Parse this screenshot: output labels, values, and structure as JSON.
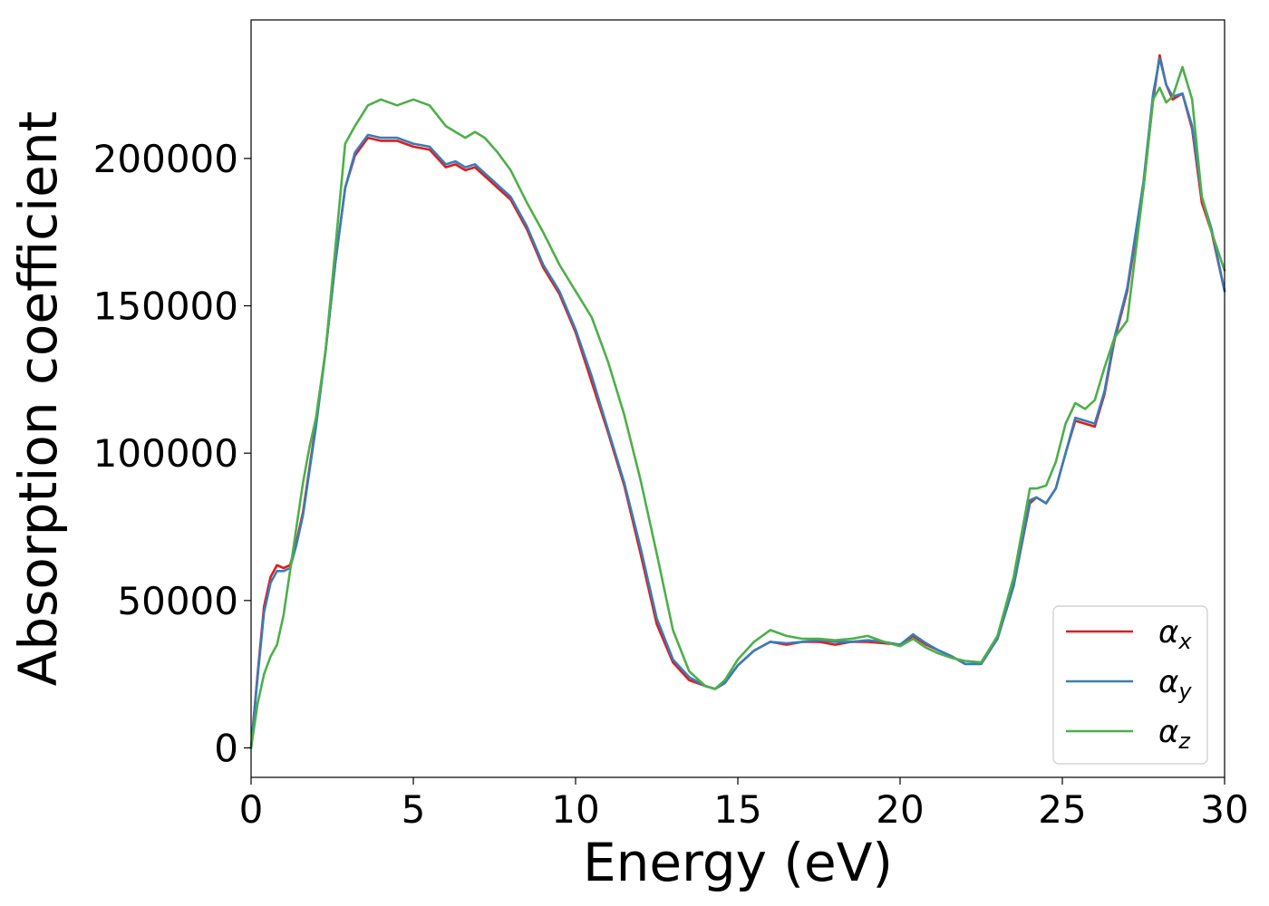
{
  "chart_data": {
    "type": "line",
    "xlabel": "Energy (eV)",
    "ylabel": "Absorption coefficient",
    "xlim": [
      0,
      30
    ],
    "ylim": [
      -10000,
      247000
    ],
    "xticks": [
      0,
      5,
      10,
      15,
      20,
      25,
      30
    ],
    "yticks": [
      0,
      50000,
      100000,
      150000,
      200000
    ],
    "grid": false,
    "legend": {
      "position": "bottom-right"
    },
    "series": [
      {
        "name": "α",
        "subscript": "x",
        "color": "#e41a1c",
        "x": [
          0,
          0.2,
          0.4,
          0.6,
          0.8,
          1.0,
          1.2,
          1.4,
          1.6,
          1.8,
          2.0,
          2.3,
          2.6,
          2.9,
          3.2,
          3.6,
          4.0,
          4.5,
          5.0,
          5.5,
          6.0,
          6.3,
          6.6,
          6.9,
          7.2,
          7.6,
          8.0,
          8.5,
          9.0,
          9.5,
          10.0,
          10.5,
          11.0,
          11.5,
          12.0,
          12.5,
          13.0,
          13.5,
          14.0,
          14.3,
          14.6,
          15.0,
          15.5,
          16.0,
          16.5,
          17.0,
          17.5,
          18.0,
          18.5,
          19.0,
          19.5,
          20.0,
          20.4,
          20.8,
          21.2,
          21.6,
          22.0,
          22.5,
          23.0,
          23.5,
          24.0,
          24.2,
          24.5,
          24.8,
          25.1,
          25.4,
          25.7,
          26.0,
          26.3,
          26.6,
          27.0,
          27.5,
          27.8,
          28.0,
          28.2,
          28.4,
          28.7,
          29.0,
          29.3,
          29.6,
          30.0
        ],
        "values": [
          0,
          25000,
          48000,
          58000,
          62000,
          61000,
          62000,
          70000,
          80000,
          95000,
          110000,
          135000,
          165000,
          190000,
          201000,
          207000,
          206000,
          206000,
          204000,
          203000,
          197000,
          198000,
          196000,
          197000,
          194000,
          190000,
          186000,
          176000,
          163000,
          154000,
          141000,
          124000,
          107000,
          89000,
          66000,
          42000,
          29000,
          23000,
          21000,
          20000,
          22000,
          28000,
          33000,
          36000,
          35000,
          36000,
          36000,
          35000,
          36000,
          36000,
          35500,
          35000,
          38000,
          35000,
          33000,
          31000,
          28500,
          28500,
          37000,
          55000,
          83000,
          85000,
          83000,
          88000,
          100000,
          111000,
          110000,
          109000,
          120000,
          138000,
          155000,
          190000,
          220000,
          235000,
          225000,
          220000,
          222000,
          210000,
          185000,
          175000,
          155000
        ]
      },
      {
        "name": "α",
        "subscript": "y",
        "color": "#377eb8",
        "x": [
          0,
          0.2,
          0.4,
          0.6,
          0.8,
          1.0,
          1.2,
          1.4,
          1.6,
          1.8,
          2.0,
          2.3,
          2.6,
          2.9,
          3.2,
          3.6,
          4.0,
          4.5,
          5.0,
          5.5,
          6.0,
          6.3,
          6.6,
          6.9,
          7.2,
          7.6,
          8.0,
          8.5,
          9.0,
          9.5,
          10.0,
          10.5,
          11.0,
          11.5,
          12.0,
          12.5,
          13.0,
          13.5,
          14.0,
          14.3,
          14.6,
          15.0,
          15.5,
          16.0,
          16.5,
          17.0,
          17.5,
          18.0,
          18.5,
          19.0,
          19.5,
          20.0,
          20.4,
          20.8,
          21.2,
          21.6,
          22.0,
          22.5,
          23.0,
          23.5,
          24.0,
          24.2,
          24.5,
          24.8,
          25.1,
          25.4,
          25.7,
          26.0,
          26.3,
          26.6,
          27.0,
          27.5,
          27.8,
          28.0,
          28.2,
          28.4,
          28.7,
          29.0,
          29.3,
          29.6,
          30.0
        ],
        "values": [
          0,
          24000,
          46000,
          56000,
          60000,
          60000,
          61000,
          69000,
          79000,
          94000,
          109000,
          135000,
          165000,
          190000,
          202000,
          208000,
          207000,
          207000,
          205000,
          204000,
          198000,
          199000,
          197000,
          198000,
          195000,
          191000,
          187000,
          177000,
          164000,
          155000,
          142000,
          126000,
          108000,
          90000,
          68000,
          44000,
          30000,
          24000,
          21000,
          20000,
          22000,
          28000,
          33000,
          36000,
          35500,
          36000,
          36500,
          36000,
          36000,
          36500,
          36000,
          35000,
          38500,
          35500,
          33000,
          31000,
          28500,
          28500,
          37000,
          55000,
          84000,
          85000,
          83000,
          88000,
          100000,
          112000,
          111000,
          110000,
          121000,
          139000,
          156000,
          192000,
          222000,
          234000,
          225000,
          221000,
          222000,
          211000,
          187000,
          176000,
          155000
        ]
      },
      {
        "name": "α",
        "subscript": "z",
        "color": "#4daf4a",
        "x": [
          0,
          0.2,
          0.4,
          0.6,
          0.8,
          1.0,
          1.2,
          1.4,
          1.6,
          1.8,
          2.0,
          2.3,
          2.6,
          2.9,
          3.2,
          3.6,
          4.0,
          4.5,
          5.0,
          5.5,
          6.0,
          6.3,
          6.6,
          6.9,
          7.2,
          7.6,
          8.0,
          8.5,
          9.0,
          9.5,
          10.0,
          10.5,
          11.0,
          11.5,
          12.0,
          12.5,
          13.0,
          13.5,
          14.0,
          14.3,
          14.6,
          15.0,
          15.5,
          16.0,
          16.5,
          17.0,
          17.5,
          18.0,
          18.5,
          19.0,
          19.5,
          20.0,
          20.4,
          20.8,
          21.2,
          21.6,
          22.0,
          22.5,
          23.0,
          23.5,
          24.0,
          24.2,
          24.5,
          24.8,
          25.1,
          25.4,
          25.7,
          26.0,
          26.3,
          26.6,
          27.0,
          27.5,
          27.8,
          28.0,
          28.2,
          28.4,
          28.7,
          29.0,
          29.3,
          29.6,
          30.0
        ],
        "values": [
          0,
          15000,
          25000,
          31000,
          35000,
          45000,
          60000,
          75000,
          90000,
          102000,
          112000,
          135000,
          170000,
          205000,
          211000,
          218000,
          220000,
          218000,
          220000,
          218000,
          211000,
          209000,
          207000,
          209000,
          207000,
          202000,
          196000,
          185000,
          175000,
          164000,
          155000,
          146000,
          131000,
          113000,
          91000,
          66000,
          40000,
          26000,
          21000,
          20000,
          23000,
          30000,
          36000,
          40000,
          38000,
          37000,
          37000,
          36500,
          37000,
          38000,
          36000,
          34500,
          37000,
          34000,
          32000,
          30500,
          29500,
          29000,
          38000,
          58000,
          88000,
          88000,
          89000,
          97000,
          110000,
          117000,
          115000,
          118000,
          129000,
          139000,
          145000,
          190000,
          220000,
          224000,
          219000,
          221000,
          231000,
          220000,
          187000,
          175000,
          162000
        ]
      }
    ]
  }
}
